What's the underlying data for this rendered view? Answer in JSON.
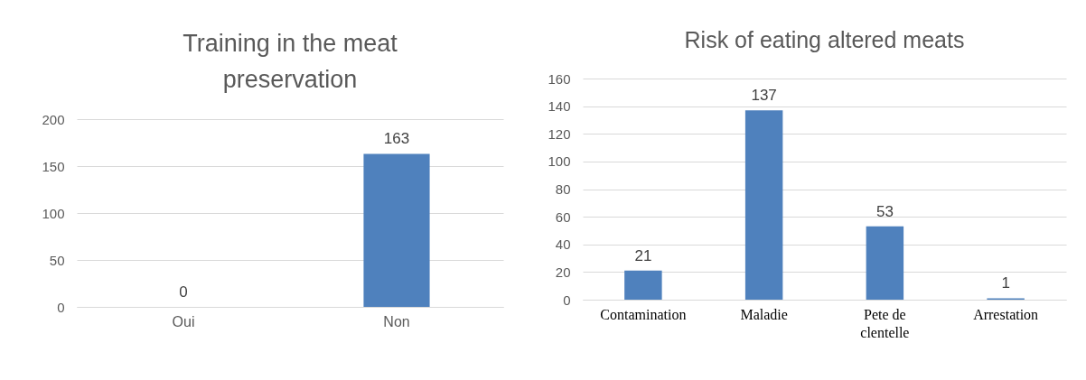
{
  "chart_data": [
    {
      "type": "bar",
      "title": "Training in the meat preservation",
      "categories": [
        "Oui",
        "Non"
      ],
      "values": [
        0,
        163
      ],
      "color": "#4f81bd",
      "ylim": [
        0,
        200
      ],
      "yticks": [
        0,
        50,
        100,
        150,
        200
      ],
      "grid": "y",
      "data_labels": true
    },
    {
      "type": "bar",
      "title": "Risk of eating altered meats",
      "categories": [
        "Contamination",
        "Maladie",
        "Pete de clentelle",
        "Arrestation"
      ],
      "values": [
        21,
        137,
        53,
        1
      ],
      "color": "#4f81bd",
      "ylim": [
        0,
        160
      ],
      "yticks": [
        0,
        20,
        40,
        60,
        80,
        100,
        120,
        140,
        160
      ],
      "grid": "y",
      "data_labels": true
    }
  ]
}
